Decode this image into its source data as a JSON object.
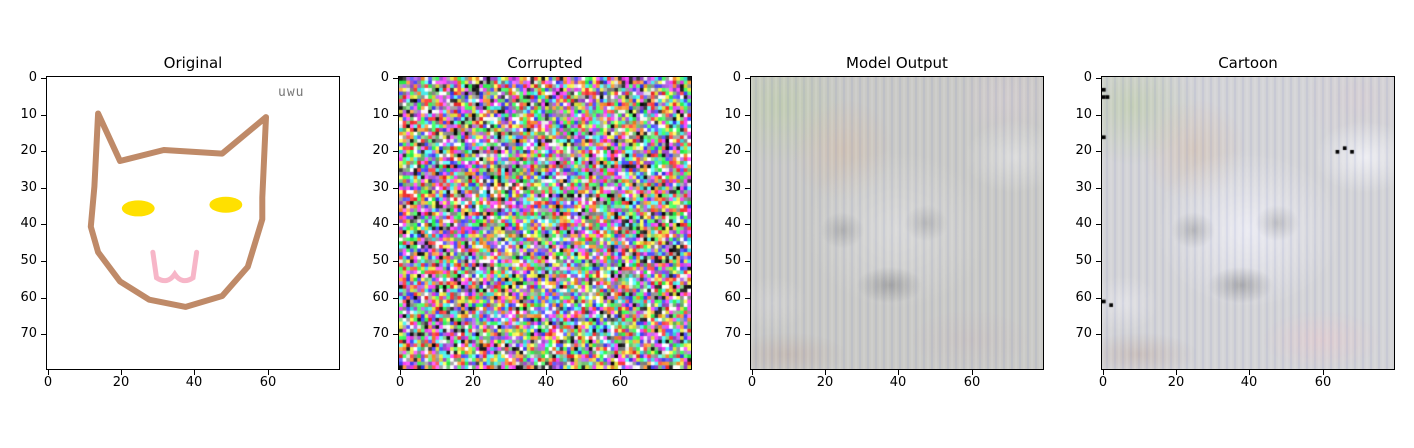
{
  "figure": {
    "panels": [
      {
        "id": "original",
        "title": "Original",
        "annotation": "uwu"
      },
      {
        "id": "corrupted",
        "title": "Corrupted"
      },
      {
        "id": "model-output",
        "title": "Model Output"
      },
      {
        "id": "cartoon",
        "title": "Cartoon"
      }
    ],
    "x_ticks": [
      "0",
      "20",
      "40",
      "60"
    ],
    "y_ticks": [
      "0",
      "10",
      "20",
      "30",
      "40",
      "50",
      "60",
      "70"
    ],
    "image_size": [
      80,
      80
    ],
    "colors": {
      "sketch_outline": "#bf8a68",
      "sketch_eyes": "#ffe000",
      "sketch_mouth": "#f7b6c8",
      "output_base": "#c9c9c6",
      "cartoon_base": "#d3d3d6"
    }
  }
}
